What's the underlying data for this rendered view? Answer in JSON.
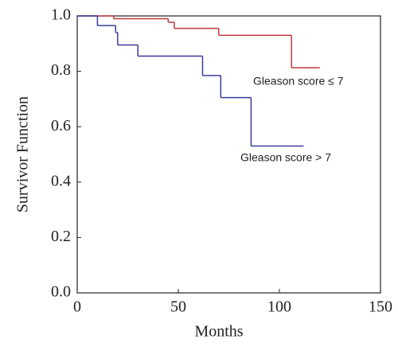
{
  "chart_data": {
    "type": "step",
    "x_label": "Months",
    "y_label": "Survivor Function",
    "xlim": [
      0,
      150
    ],
    "ylim": [
      0,
      1.0
    ],
    "xticks": [
      0,
      50,
      100,
      150
    ],
    "yticks": [
      {
        "value": 0,
        "label": "0.0"
      },
      0.2,
      0.4,
      0.6,
      0.8,
      {
        "value": 1,
        "label": "1.0"
      }
    ],
    "series": [
      {
        "color": "#c0393b",
        "x": [
          0,
          18,
          45,
          48,
          70,
          106,
          120
        ],
        "values": [
          1.0,
          0.99,
          0.977,
          0.955,
          0.93,
          0.813,
          0.813
        ]
      },
      {
        "color": "#3b3b9c",
        "x": [
          0,
          10,
          19,
          20,
          30,
          62,
          71,
          86,
          112
        ],
        "values": [
          1.0,
          0.965,
          0.94,
          0.895,
          0.855,
          0.785,
          0.705,
          0.53,
          0.53
        ]
      }
    ],
    "annotations": [
      {
        "text": "Gleason score ≤ 7"
      },
      {
        "text": "Gleason score > 7"
      }
    ]
  }
}
